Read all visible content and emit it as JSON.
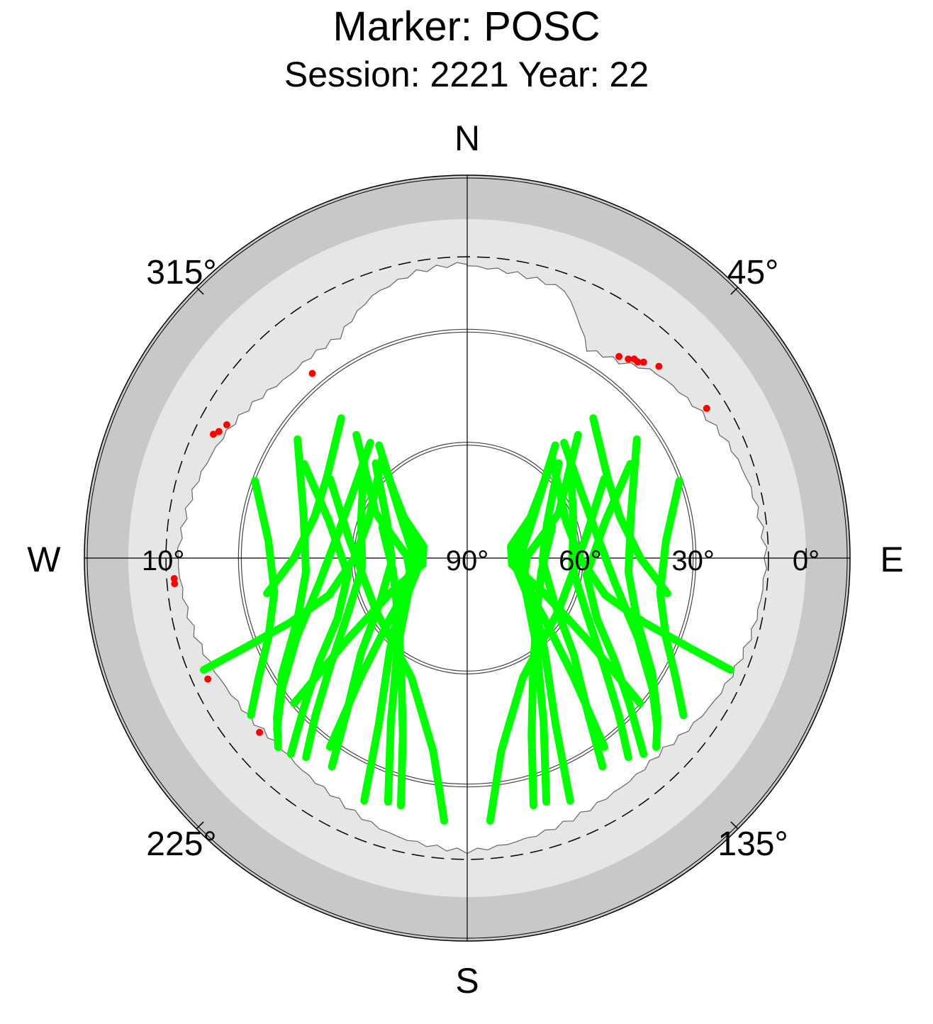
{
  "chart_data": {
    "type": "scatter",
    "subtype": "polar sky plot (azimuth / elevation)",
    "title": "Marker: POSC",
    "subtitle": "Session: 2221 Year: 22",
    "cardinal_labels": {
      "north": "N",
      "east": "E",
      "south": "S",
      "west": "W"
    },
    "azimuth_labels": [
      {
        "az": 45,
        "text": "45°"
      },
      {
        "az": 135,
        "text": "135°"
      },
      {
        "az": 225,
        "text": "225°"
      },
      {
        "az": 315,
        "text": "315°"
      }
    ],
    "elevation_labels": [
      {
        "el": 90,
        "text": "90°"
      },
      {
        "el": 60,
        "text": "60°"
      },
      {
        "el": 30,
        "text": "30°"
      },
      {
        "el": 0,
        "text": "0°"
      },
      {
        "el": 10,
        "text": "10°",
        "side": "west"
      }
    ],
    "elevation_rings": [
      60,
      30,
      10
    ],
    "cutoff_elevation_dashed": 10,
    "grid": true,
    "colors": {
      "tracks": "#00ff00",
      "flagged": "#ff0000",
      "horizon_band": "#c8c8c8",
      "obstruction_mask": "#e6e6e6",
      "background": "#ffffff"
    },
    "series": [
      {
        "color": "#00ff00",
        "tracks": [
          [
            [
              320,
              55
            ],
            [
              300,
              70
            ],
            [
              270,
              76
            ],
            [
              240,
              70
            ],
            [
              220,
              58
            ],
            [
              208,
              40
            ],
            [
              203,
              20
            ]
          ],
          [
            [
              318,
              57
            ],
            [
              298,
              72
            ],
            [
              270,
              78
            ],
            [
              240,
              72
            ],
            [
              218,
              60
            ],
            [
              205,
              42
            ],
            [
              198,
              22
            ]
          ],
          [
            [
              316,
              55
            ],
            [
              293,
              67
            ],
            [
              268,
              70
            ],
            [
              243,
              64
            ],
            [
              228,
              52
            ],
            [
              218,
              38
            ],
            [
              213,
              24
            ]
          ],
          [
            [
              314,
              52
            ],
            [
              290,
              60
            ],
            [
              265,
              62
            ],
            [
              245,
              55
            ],
            [
              232,
              44
            ],
            [
              224,
              32
            ],
            [
              219,
              22
            ]
          ],
          [
            [
              320,
              50
            ],
            [
              300,
              55
            ],
            [
              280,
              55
            ],
            [
              260,
              50
            ],
            [
              245,
              40
            ],
            [
              235,
              30
            ],
            [
              228,
              22
            ]
          ],
          [
            [
              305,
              35
            ],
            [
              285,
              45
            ],
            [
              265,
              47
            ],
            [
              250,
              42
            ],
            [
              238,
              32
            ],
            [
              230,
              24
            ],
            [
              225,
              19
            ]
          ],
          [
            [
              290,
              30
            ],
            [
              275,
              37
            ],
            [
              260,
              38
            ],
            [
              248,
              33
            ],
            [
              240,
              26
            ],
            [
              234,
              19
            ]
          ],
          [
            [
              300,
              40
            ],
            [
              285,
              52
            ],
            [
              262,
              58
            ],
            [
              245,
              52
            ],
            [
              235,
              42
            ],
            [
              228,
              32
            ],
            [
              222,
              20
            ]
          ],
          [
            [
              318,
              46
            ],
            [
              296,
              63
            ],
            [
              272,
              74
            ],
            [
              248,
              74
            ],
            [
              232,
              64
            ],
            [
              222,
              48
            ],
            [
              216,
              28
            ]
          ],
          [
            [
              322,
              52
            ],
            [
              305,
              68
            ],
            [
              285,
              78
            ],
            [
              262,
              78
            ],
            [
              246,
              68
            ],
            [
              236,
              52
            ],
            [
              230,
              30
            ]
          ],
          [
            [
              40,
              55
            ],
            [
              60,
              70
            ],
            [
              90,
              76
            ],
            [
              120,
              70
            ],
            [
              140,
              58
            ],
            [
              152,
              40
            ],
            [
              157,
              20
            ]
          ],
          [
            [
              42,
              57
            ],
            [
              62,
              72
            ],
            [
              90,
              78
            ],
            [
              120,
              72
            ],
            [
              142,
              60
            ],
            [
              155,
              42
            ],
            [
              162,
              22
            ]
          ],
          [
            [
              44,
              55
            ],
            [
              67,
              67
            ],
            [
              92,
              70
            ],
            [
              117,
              64
            ],
            [
              132,
              52
            ],
            [
              142,
              38
            ],
            [
              147,
              24
            ]
          ],
          [
            [
              46,
              52
            ],
            [
              70,
              60
            ],
            [
              95,
              62
            ],
            [
              115,
              55
            ],
            [
              128,
              44
            ],
            [
              136,
              32
            ],
            [
              141,
              22
            ]
          ],
          [
            [
              40,
              50
            ],
            [
              60,
              55
            ],
            [
              80,
              55
            ],
            [
              100,
              50
            ],
            [
              115,
              40
            ],
            [
              125,
              30
            ],
            [
              132,
              22
            ]
          ],
          [
            [
              55,
              35
            ],
            [
              75,
              45
            ],
            [
              95,
              47
            ],
            [
              110,
              42
            ],
            [
              122,
              32
            ],
            [
              130,
              24
            ],
            [
              135,
              19
            ]
          ],
          [
            [
              70,
              30
            ],
            [
              85,
              37
            ],
            [
              100,
              38
            ],
            [
              112,
              33
            ],
            [
              120,
              26
            ],
            [
              126,
              19
            ]
          ],
          [
            [
              60,
              40
            ],
            [
              75,
              52
            ],
            [
              98,
              58
            ],
            [
              115,
              52
            ],
            [
              125,
              42
            ],
            [
              132,
              32
            ],
            [
              138,
              20
            ]
          ],
          [
            [
              42,
              46
            ],
            [
              64,
              63
            ],
            [
              88,
              74
            ],
            [
              112,
              74
            ],
            [
              128,
              64
            ],
            [
              138,
              48
            ],
            [
              144,
              28
            ]
          ],
          [
            [
              38,
              52
            ],
            [
              55,
              68
            ],
            [
              75,
              78
            ],
            [
              98,
              78
            ],
            [
              114,
              68
            ],
            [
              124,
              52
            ],
            [
              130,
              30
            ]
          ],
          [
            [
              320,
              55
            ],
            [
              290,
              62
            ],
            [
              270,
              60
            ],
            [
              255,
              52
            ],
            [
              250,
              40
            ],
            [
              248,
              26
            ],
            [
              247,
              14
            ]
          ],
          [
            [
              40,
              55
            ],
            [
              70,
              62
            ],
            [
              90,
              60
            ],
            [
              105,
              52
            ],
            [
              110,
              40
            ],
            [
              112,
              26
            ],
            [
              113,
              14
            ]
          ],
          [
            [
              318,
              40
            ],
            [
              300,
              47
            ],
            [
              285,
              48
            ],
            [
              270,
              44
            ],
            [
              260,
              36
            ]
          ],
          [
            [
              42,
              40
            ],
            [
              60,
              47
            ],
            [
              75,
              48
            ],
            [
              90,
              44
            ],
            [
              100,
              36
            ]
          ],
          [
            [
              195,
              22
            ],
            [
              200,
              40
            ],
            [
              210,
              55
            ],
            [
              230,
              66
            ],
            [
              260,
              70
            ],
            [
              290,
              66
            ]
          ],
          [
            [
              165,
              22
            ],
            [
              160,
              40
            ],
            [
              150,
              55
            ],
            [
              130,
              66
            ],
            [
              100,
              70
            ],
            [
              70,
              66
            ]
          ],
          [
            [
              185,
              20
            ],
            [
              190,
              38
            ],
            [
              205,
              55
            ],
            [
              240,
              62
            ],
            [
              280,
              58
            ],
            [
              300,
              48
            ]
          ],
          [
            [
              175,
              20
            ],
            [
              170,
              38
            ],
            [
              155,
              55
            ],
            [
              120,
              62
            ],
            [
              80,
              58
            ],
            [
              60,
              48
            ]
          ]
        ]
      },
      {
        "color": "#ff0000",
        "points": [
          [
            37,
            23
          ],
          [
            39,
            22
          ],
          [
            40,
            21
          ],
          [
            41,
            21
          ],
          [
            42,
            20
          ],
          [
            45,
            18
          ],
          [
            58,
            15
          ],
          [
            320,
            26
          ],
          [
            299,
            17
          ],
          [
            297,
            16
          ],
          [
            296,
            15
          ],
          [
            266,
            12
          ],
          [
            265,
            12
          ],
          [
            245,
            14
          ],
          [
            230,
            18
          ]
        ]
      }
    ]
  }
}
